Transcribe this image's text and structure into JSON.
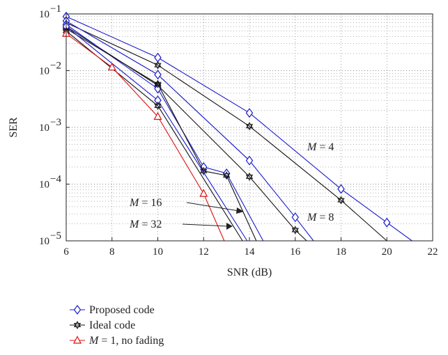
{
  "chart_data": {
    "type": "line",
    "xlabel": "SNR (dB)",
    "ylabel": "SER",
    "x_ticks": [
      6,
      8,
      10,
      12,
      14,
      16,
      18,
      20,
      22
    ],
    "xlim": [
      6,
      22
    ],
    "ylim": [
      1e-05,
      0.1
    ],
    "y_scale": "log",
    "y_ticks": [
      {
        "value": 1e-05,
        "base": "10",
        "exp": "−5"
      },
      {
        "value": 0.0001,
        "base": "10",
        "exp": "−4"
      },
      {
        "value": 0.001,
        "base": "10",
        "exp": "−3"
      },
      {
        "value": 0.01,
        "base": "10",
        "exp": "−2"
      },
      {
        "value": 0.1,
        "base": "10",
        "exp": "−1"
      }
    ],
    "grid": true,
    "series": [
      {
        "name": "Proposed code",
        "group": "M = 4",
        "color": "#1a1acc",
        "marker": "diamond",
        "x": [
          6,
          10,
          14,
          18,
          20,
          21.1
        ],
        "y": [
          0.09,
          0.017,
          0.0018,
          8.2e-05,
          2.1e-05,
          1e-05
        ]
      },
      {
        "name": "Ideal code",
        "group": "M = 4",
        "color": "#111111",
        "marker": "star",
        "x": [
          6,
          10,
          14,
          18,
          20.0
        ],
        "y": [
          0.07,
          0.0125,
          0.00105,
          5.2e-05,
          1e-05
        ]
      },
      {
        "name": "Proposed code",
        "group": "M = 8",
        "color": "#1a1acc",
        "marker": "diamond",
        "x": [
          6,
          10,
          14,
          16,
          16.8
        ],
        "y": [
          0.075,
          0.0085,
          0.00026,
          2.6e-05,
          1e-05
        ]
      },
      {
        "name": "Ideal code",
        "group": "M = 8",
        "color": "#111111",
        "marker": "star",
        "x": [
          6,
          10,
          14,
          16,
          16.5
        ],
        "y": [
          0.06,
          0.0055,
          0.000135,
          1.55e-05,
          1e-05
        ]
      },
      {
        "name": "Proposed code",
        "group": "M = 16",
        "color": "#1a1acc",
        "marker": "diamond",
        "x": [
          6,
          10,
          12,
          13,
          14.6
        ],
        "y": [
          0.065,
          0.0048,
          0.0002,
          0.000155,
          1e-05
        ]
      },
      {
        "name": "Ideal code",
        "group": "M = 16",
        "color": "#111111",
        "marker": "star",
        "x": [
          6,
          10,
          12,
          13,
          14.3
        ],
        "y": [
          0.055,
          0.0058,
          0.00017,
          0.000142,
          1e-05
        ]
      },
      {
        "name": "Proposed code",
        "group": "M = 32",
        "color": "#1a1acc",
        "marker": "diamond",
        "x": [
          6,
          10,
          13.9
        ],
        "y": [
          0.06,
          0.003,
          1e-05
        ]
      },
      {
        "name": "Ideal code",
        "group": "M = 32",
        "color": "#111111",
        "marker": "star",
        "x": [
          6,
          10,
          13.7
        ],
        "y": [
          0.05,
          0.0024,
          1e-05
        ]
      },
      {
        "name": "M = 1, no fading",
        "group": "M = 1",
        "color": "#dd1111",
        "marker": "triangle",
        "x": [
          6,
          8,
          10,
          12,
          12.9
        ],
        "y": [
          0.045,
          0.0115,
          0.00155,
          6.8e-05,
          1e-05
        ]
      }
    ],
    "annotations": [
      {
        "text": "M = 4"
      },
      {
        "text": "M = 8"
      },
      {
        "text": "M = 16"
      },
      {
        "text": "M = 32"
      }
    ],
    "legend": {
      "placement": "bottom-left",
      "entries": [
        {
          "label": "Proposed code",
          "color": "#1a1acc",
          "marker": "diamond"
        },
        {
          "label": "Ideal code",
          "color": "#111111",
          "marker": "star"
        },
        {
          "label": "M = 1, no fading",
          "color": "#dd1111",
          "marker": "triangle"
        }
      ]
    }
  }
}
